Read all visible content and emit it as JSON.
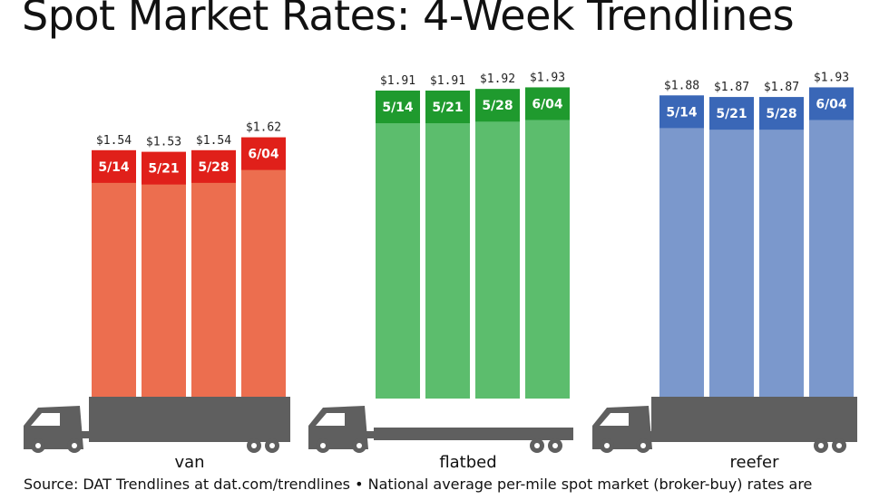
{
  "title": "Spot Market Rates: 4-Week Trendlines",
  "source": "Source: DAT Trendlines at dat.com/trendlines • National average per-mile spot market (broker-buy) rates are",
  "icons": {
    "truck": "truck-icon"
  },
  "chart_data": {
    "type": "bar",
    "title": "Spot Market Rates: 4-Week Trendlines",
    "ylim": [
      0,
      2.2
    ],
    "grid": false,
    "weeks": [
      "5/14",
      "5/21",
      "5/28",
      "6/04"
    ],
    "groups": [
      {
        "name": "van",
        "values": [
          1.54,
          1.53,
          1.54,
          1.62
        ],
        "labels": [
          "$1.54",
          "$1.53",
          "$1.54",
          "$1.62"
        ],
        "color": "#ec6e4f",
        "accent": "#e0201a"
      },
      {
        "name": "flatbed",
        "values": [
          1.91,
          1.91,
          1.92,
          1.93
        ],
        "labels": [
          "$1.91",
          "$1.91",
          "$1.92",
          "$1.93"
        ],
        "color": "#5cbd6d",
        "accent": "#1f9a2e"
      },
      {
        "name": "reefer",
        "values": [
          1.88,
          1.87,
          1.87,
          1.93
        ],
        "labels": [
          "$1.88",
          "$1.87",
          "$1.87",
          "$1.93"
        ],
        "color": "#7b98cc",
        "accent": "#3a67b7"
      }
    ]
  }
}
